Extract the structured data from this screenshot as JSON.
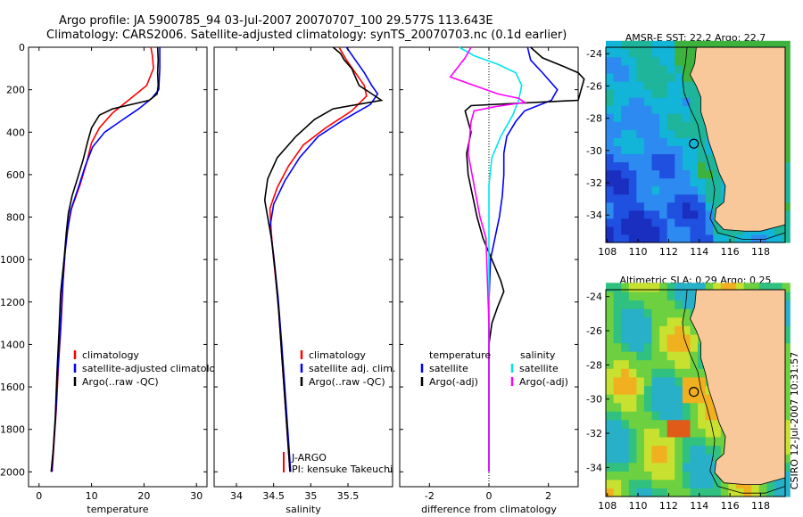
{
  "figure": {
    "title_line1": "Argo profile: JA 5900785_94 03-Jul-2007 20070707_100 29.577S 113.643E",
    "title_line2": "Climatology: CARS2006. Satellite-adjusted climatology: synTS_20070703.nc (0.1d earlier)",
    "side_label": "CSIRO 12-Jul-2007 10:31:57"
  },
  "colors": {
    "red": "#ff0000",
    "blue": "#0000ff",
    "black": "#000000",
    "cyan": "#00e5ee",
    "magenta": "#ff00ff",
    "land": "#f8c79a"
  },
  "chart_data": [
    {
      "type": "line",
      "name": "temperature-profile",
      "xlabel": "temperature",
      "ylabel": "",
      "xlim": [
        -2,
        32
      ],
      "ylim": [
        0,
        2070
      ],
      "y_reversed": true,
      "xticks": [
        0,
        10,
        20,
        30
      ],
      "yticks": [
        0,
        200,
        400,
        600,
        800,
        1000,
        1200,
        1400,
        1600,
        1800,
        2000
      ],
      "legend": [
        "climatology",
        "satellite-adjusted climatology",
        "Argo(..raw -QC)"
      ],
      "series": [
        {
          "name": "climatology",
          "color": "red",
          "points": [
            [
              21.3,
              0
            ],
            [
              21.6,
              40
            ],
            [
              21.8,
              100
            ],
            [
              20.5,
              180
            ],
            [
              17.5,
              240
            ],
            [
              14,
              310
            ],
            [
              11.5,
              380
            ],
            [
              10,
              450
            ],
            [
              9,
              550
            ],
            [
              7.8,
              650
            ],
            [
              6.2,
              760
            ],
            [
              5.5,
              850
            ],
            [
              5,
              950
            ],
            [
              4.6,
              1100
            ],
            [
              4.2,
              1300
            ],
            [
              3.7,
              1500
            ],
            [
              3.3,
              1700
            ],
            [
              2.9,
              1850
            ],
            [
              2.5,
              2000
            ]
          ]
        },
        {
          "name": "satellite-adjusted climatology",
          "color": "blue",
          "points": [
            [
              23,
              0
            ],
            [
              23,
              100
            ],
            [
              22.8,
              200
            ],
            [
              21.5,
              240
            ],
            [
              19,
              290
            ],
            [
              16,
              340
            ],
            [
              12.5,
              400
            ],
            [
              10.2,
              470
            ],
            [
              8.8,
              560
            ],
            [
              7.5,
              660
            ],
            [
              6,
              770
            ],
            [
              5.4,
              870
            ],
            [
              4.9,
              980
            ],
            [
              4.5,
              1120
            ],
            [
              4.1,
              1320
            ],
            [
              3.6,
              1520
            ],
            [
              3.2,
              1720
            ],
            [
              2.8,
              1870
            ],
            [
              2.4,
              2000
            ]
          ]
        },
        {
          "name": "Argo(..raw -QC)",
          "color": "black",
          "points": [
            [
              22.6,
              0
            ],
            [
              22.7,
              60
            ],
            [
              22.6,
              120
            ],
            [
              22.7,
              180
            ],
            [
              22.5,
              220
            ],
            [
              21,
              250
            ],
            [
              14,
              290
            ],
            [
              11.5,
              320
            ],
            [
              10,
              380
            ],
            [
              9.2,
              450
            ],
            [
              8.4,
              530
            ],
            [
              7.3,
              620
            ],
            [
              6.3,
              700
            ],
            [
              5.6,
              780
            ],
            [
              5.2,
              870
            ],
            [
              4.8,
              990
            ],
            [
              4.1,
              1160
            ],
            [
              3.8,
              1340
            ],
            [
              3.4,
              1540
            ],
            [
              3.1,
              1740
            ],
            [
              2.7,
              1900
            ],
            [
              2.3,
              2000
            ]
          ]
        }
      ]
    },
    {
      "type": "line",
      "name": "salinity-profile",
      "xlabel": "salinity",
      "ylabel": "",
      "xlim": [
        33.7,
        36.1
      ],
      "ylim": [
        0,
        2070
      ],
      "y_reversed": true,
      "xticks": [
        34,
        34.5,
        35,
        35.5
      ],
      "legend": [
        "climatology",
        "satellite adj. clim.",
        "Argo(..raw -QC)"
      ],
      "annotations": [
        "J-ARGO",
        "PI: kensuke Takeuchi"
      ],
      "series": [
        {
          "name": "climatology",
          "color": "red",
          "points": [
            [
              35.38,
              0
            ],
            [
              35.48,
              60
            ],
            [
              35.6,
              120
            ],
            [
              35.72,
              180
            ],
            [
              35.75,
              230
            ],
            [
              35.55,
              300
            ],
            [
              35.2,
              380
            ],
            [
              34.9,
              460
            ],
            [
              34.7,
              560
            ],
            [
              34.55,
              660
            ],
            [
              34.45,
              760
            ],
            [
              34.47,
              880
            ],
            [
              34.5,
              1000
            ],
            [
              34.56,
              1200
            ],
            [
              34.6,
              1400
            ],
            [
              34.64,
              1600
            ],
            [
              34.68,
              1800
            ],
            [
              34.72,
              2000
            ]
          ]
        },
        {
          "name": "satellite adj. clim.",
          "color": "blue",
          "points": [
            [
              35.48,
              0
            ],
            [
              35.6,
              60
            ],
            [
              35.72,
              120
            ],
            [
              35.82,
              180
            ],
            [
              35.9,
              220
            ],
            [
              35.8,
              270
            ],
            [
              35.45,
              340
            ],
            [
              35.1,
              420
            ],
            [
              34.85,
              520
            ],
            [
              34.65,
              630
            ],
            [
              34.5,
              740
            ],
            [
              34.45,
              850
            ],
            [
              34.5,
              980
            ],
            [
              34.56,
              1180
            ],
            [
              34.61,
              1400
            ],
            [
              34.65,
              1600
            ],
            [
              34.69,
              1800
            ],
            [
              34.73,
              2000
            ]
          ]
        },
        {
          "name": "Argo(..raw -QC)",
          "color": "black",
          "points": [
            [
              35.3,
              0
            ],
            [
              35.4,
              30
            ],
            [
              35.45,
              60
            ],
            [
              35.55,
              100
            ],
            [
              35.6,
              140
            ],
            [
              35.65,
              180
            ],
            [
              35.78,
              210
            ],
            [
              35.95,
              250
            ],
            [
              35.3,
              290
            ],
            [
              35.05,
              340
            ],
            [
              34.8,
              420
            ],
            [
              34.55,
              520
            ],
            [
              34.42,
              620
            ],
            [
              34.38,
              720
            ],
            [
              34.42,
              800
            ],
            [
              34.47,
              900
            ],
            [
              34.52,
              1050
            ],
            [
              34.57,
              1250
            ],
            [
              34.61,
              1450
            ],
            [
              34.65,
              1650
            ],
            [
              34.69,
              1850
            ],
            [
              34.72,
              2000
            ]
          ]
        }
      ]
    },
    {
      "type": "line",
      "name": "difference-profile",
      "xlabel": "difference from climatology",
      "ylabel": "",
      "xlim": [
        -3,
        3
      ],
      "ylim": [
        0,
        2070
      ],
      "y_reversed": true,
      "xticks": [
        -2,
        0,
        2
      ],
      "zero_line": 0,
      "legend_headings": [
        "temperature",
        "salinity"
      ],
      "legend_temperature": [
        "satellite",
        "Argo(-adj)"
      ],
      "legend_salinity": [
        "satellite",
        "Argo(-adj)"
      ],
      "series": [
        {
          "name": "temperature satellite",
          "color": "blue",
          "points": [
            [
              1.3,
              0
            ],
            [
              1.4,
              60
            ],
            [
              1.8,
              120
            ],
            [
              2.3,
              200
            ],
            [
              2.1,
              250
            ],
            [
              1.2,
              300
            ],
            [
              0.9,
              350
            ],
            [
              0.6,
              420
            ],
            [
              0.5,
              500
            ],
            [
              0.5,
              600
            ],
            [
              0.45,
              700
            ],
            [
              0.35,
              800
            ],
            [
              0.2,
              900
            ],
            [
              0.05,
              1000
            ],
            [
              0,
              1200
            ],
            [
              0,
              1500
            ],
            [
              0,
              2000
            ]
          ]
        },
        {
          "name": "temperature Argo(-adj)",
          "color": "black",
          "points": [
            [
              1.4,
              0
            ],
            [
              1.8,
              50
            ],
            [
              2.5,
              90
            ],
            [
              3.0,
              120
            ],
            [
              3.2,
              150
            ],
            [
              3.0,
              250
            ],
            [
              -0.6,
              275
            ],
            [
              -0.8,
              300
            ],
            [
              -0.6,
              400
            ],
            [
              -0.75,
              500
            ],
            [
              -0.7,
              600
            ],
            [
              -0.55,
              700
            ],
            [
              -0.4,
              800
            ],
            [
              -0.2,
              900
            ],
            [
              0.1,
              1000
            ],
            [
              0.4,
              1100
            ],
            [
              0.5,
              1150
            ],
            [
              0.3,
              1220
            ],
            [
              0.1,
              1300
            ],
            [
              0,
              1400
            ],
            [
              0,
              1700
            ],
            [
              0,
              2000
            ]
          ]
        },
        {
          "name": "salinity satellite",
          "color": "cyan",
          "points": [
            [
              -1,
              0
            ],
            [
              -0.5,
              40
            ],
            [
              0.3,
              80
            ],
            [
              0.9,
              120
            ],
            [
              1.1,
              180
            ],
            [
              1,
              250
            ],
            [
              0.8,
              320
            ],
            [
              0.4,
              420
            ],
            [
              0.1,
              520
            ],
            [
              0,
              650
            ],
            [
              0,
              2000
            ]
          ]
        },
        {
          "name": "salinity Argo(-adj)",
          "color": "magenta",
          "points": [
            [
              -0.6,
              0
            ],
            [
              -0.8,
              50
            ],
            [
              -1.3,
              140
            ],
            [
              -0.5,
              180
            ],
            [
              0.3,
              220
            ],
            [
              1,
              240
            ],
            [
              1.2,
              260
            ],
            [
              0.2,
              280
            ],
            [
              -0.5,
              300
            ],
            [
              -0.6,
              350
            ],
            [
              -0.7,
              500
            ],
            [
              -0.5,
              650
            ],
            [
              -0.3,
              800
            ],
            [
              -0.1,
              900
            ],
            [
              -0.05,
              1100
            ],
            [
              0,
              1300
            ],
            [
              0,
              2000
            ]
          ]
        }
      ]
    },
    {
      "type": "heatmap",
      "name": "sst-map",
      "title": "AMSR-E SST: 22.2 Argo: 22.7",
      "xlim": [
        107.9,
        119.6
      ],
      "ylim": [
        -35.7,
        -23.6
      ],
      "xticks": [
        108,
        110,
        112,
        114,
        116,
        118
      ],
      "yticks": [
        -24,
        -26,
        -28,
        -30,
        -32,
        -34
      ],
      "float_position": [
        113.643,
        -29.577
      ]
    },
    {
      "type": "heatmap",
      "name": "sla-map",
      "title": "Altimetric SLA: 0.29 Argo: 0.25",
      "xlim": [
        107.9,
        119.6
      ],
      "ylim": [
        -35.7,
        -23.6
      ],
      "xticks": [
        108,
        110,
        112,
        114,
        116,
        118
      ],
      "yticks": [
        -24,
        -26,
        -28,
        -30,
        -32,
        -34
      ],
      "float_position": [
        113.643,
        -29.577
      ]
    }
  ]
}
